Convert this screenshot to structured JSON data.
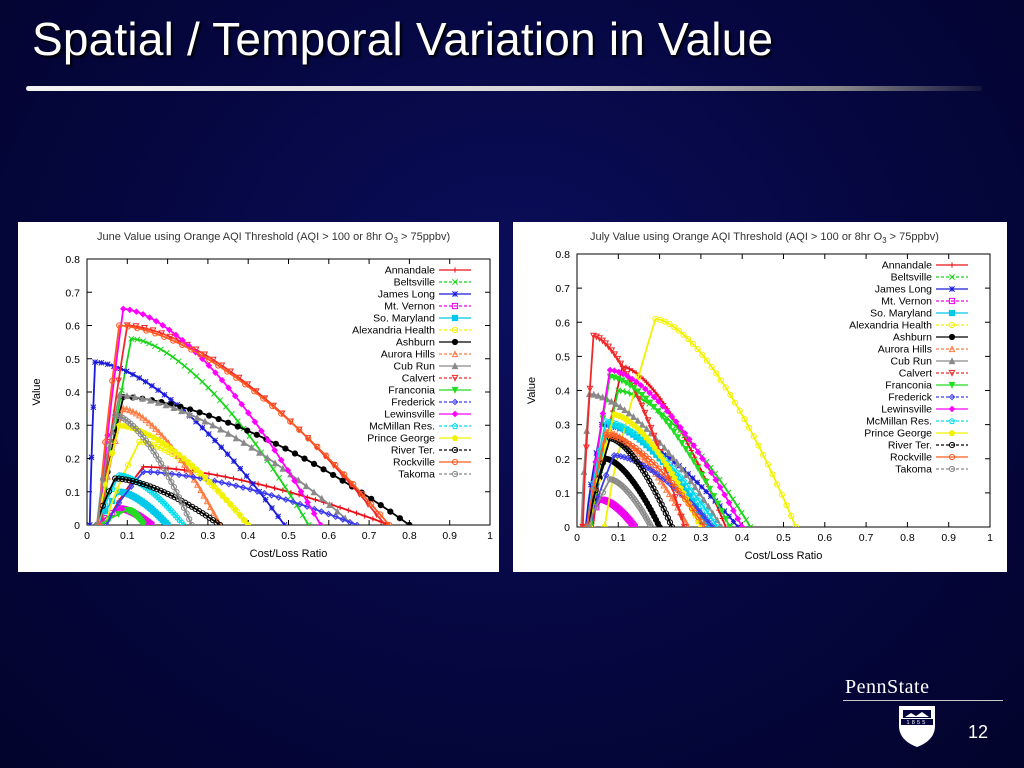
{
  "slide": {
    "title": "Spatial / Temporal Variation in Value",
    "number": "12",
    "logo": {
      "text": "PennState",
      "year": "1855"
    }
  },
  "colors": {
    "background": "#05063d",
    "title": "#ffffff"
  },
  "chart_data": [
    {
      "id": "june",
      "type": "line",
      "title_main": "June Value using Orange AQI Threshold (AQI > 100 or 8hr O",
      "title_sub": "3",
      "title_end": " > 75ppbv)",
      "xlabel": "Cost/Loss Ratio",
      "ylabel": "Value",
      "xlim": [
        0,
        1
      ],
      "ylim": [
        0,
        0.8
      ],
      "xticks": [
        "0",
        "0.1",
        "0.2",
        "0.3",
        "0.4",
        "0.5",
        "0.6",
        "0.7",
        "0.8",
        "0.9",
        "1"
      ],
      "yticks": [
        "0",
        "0.1",
        "0.2",
        "0.3",
        "0.4",
        "0.5",
        "0.6",
        "0.7",
        "0.8"
      ],
      "legend_position": "top-right",
      "series": [
        {
          "name": "Annandale",
          "color": "#e8101a",
          "marker": "plus",
          "peak": [
            0.14,
            0.175
          ],
          "end": 0.75
        },
        {
          "name": "Beltsville",
          "color": "#18d418",
          "marker": "x",
          "peak": [
            0.11,
            0.56
          ],
          "end": 0.55
        },
        {
          "name": "James Long",
          "color": "#1a1ad8",
          "marker": "star",
          "peak": [
            0.02,
            0.49
          ],
          "end": 0.49
        },
        {
          "name": "Mt. Vernon",
          "color": "#ee00ee",
          "marker": "square",
          "peak": [
            0.08,
            0.05
          ],
          "end": 0.16
        },
        {
          "name": "So. Maryland",
          "color": "#00c8e8",
          "marker": "filledsquare",
          "peak": [
            0.08,
            0.1
          ],
          "end": 0.2
        },
        {
          "name": "Alexandria Health",
          "color": "#f2f200",
          "marker": "circle",
          "peak": [
            0.13,
            0.25
          ],
          "end": 0.4
        },
        {
          "name": "Ashburn",
          "color": "#000000",
          "marker": "filledcircle",
          "peak": [
            0.09,
            0.385
          ],
          "end": 0.8
        },
        {
          "name": "Aurora Hills",
          "color": "#ff7a40",
          "marker": "triangle",
          "peak": [
            0.09,
            0.35
          ],
          "end": 0.33
        },
        {
          "name": "Cub Run",
          "color": "#8a8a8a",
          "marker": "filledtriangle",
          "peak": [
            0.08,
            0.39
          ],
          "end": 0.66
        },
        {
          "name": "Calvert",
          "color": "#f02828",
          "marker": "tridown",
          "peak": [
            0.1,
            0.6
          ],
          "end": 0.74
        },
        {
          "name": "Franconia",
          "color": "#22dd22",
          "marker": "filledtridown",
          "peak": [
            0.1,
            0.045
          ],
          "end": 0.14
        },
        {
          "name": "Frederick",
          "color": "#3a3aee",
          "marker": "diamond",
          "peak": [
            0.14,
            0.16
          ],
          "end": 0.67
        },
        {
          "name": "Lewinsville",
          "color": "#ff00ff",
          "marker": "filleddiamond",
          "peak": [
            0.09,
            0.65
          ],
          "end": 0.58
        },
        {
          "name": "McMillan Res.",
          "color": "#00ddee",
          "marker": "pentagon",
          "peak": [
            0.08,
            0.15
          ],
          "end": 0.24
        },
        {
          "name": "Prince George",
          "color": "#f2f200",
          "marker": "filledpentagon",
          "peak": [
            0.08,
            0.3
          ],
          "end": 0.4
        },
        {
          "name": "River Ter.",
          "color": "#000000",
          "marker": "circle",
          "peak": [
            0.07,
            0.14
          ],
          "end": 0.33
        },
        {
          "name": "Rockville",
          "color": "#ff5a22",
          "marker": "circle",
          "peak": [
            0.08,
            0.6
          ],
          "end": 0.75
        },
        {
          "name": "Takoma",
          "color": "#888888",
          "marker": "circle",
          "peak": [
            0.07,
            0.33
          ],
          "end": 0.26
        }
      ]
    },
    {
      "id": "july",
      "type": "line",
      "title_main": "July Value using Orange AQI Threshold (AQI > 100 or 8hr O",
      "title_sub": "3",
      "title_end": " > 75ppbv)",
      "xlabel": "Cost/Loss Ratio",
      "ylabel": "Value",
      "xlim": [
        0,
        1
      ],
      "ylim": [
        0,
        0.8
      ],
      "xticks": [
        "0",
        "0.1",
        "0.2",
        "0.3",
        "0.4",
        "0.5",
        "0.6",
        "0.7",
        "0.8",
        "0.9",
        "1"
      ],
      "yticks": [
        "0",
        "0.1",
        "0.2",
        "0.3",
        "0.4",
        "0.5",
        "0.6",
        "0.7",
        "0.8"
      ],
      "legend_position": "top-right",
      "series": [
        {
          "name": "Annandale",
          "color": "#e8101a",
          "marker": "plus",
          "peak": [
            0.11,
            0.47
          ],
          "end": 0.36
        },
        {
          "name": "Beltsville",
          "color": "#18d418",
          "marker": "x",
          "peak": [
            0.1,
            0.4
          ],
          "end": 0.42
        },
        {
          "name": "James Long",
          "color": "#1a1ad8",
          "marker": "star",
          "peak": [
            0.06,
            0.3
          ],
          "end": 0.39
        },
        {
          "name": "Mt. Vernon",
          "color": "#ee00ee",
          "marker": "square",
          "peak": [
            0.06,
            0.08
          ],
          "end": 0.14
        },
        {
          "name": "So. Maryland",
          "color": "#00c8e8",
          "marker": "filledsquare",
          "peak": [
            0.08,
            0.3
          ],
          "end": 0.32
        },
        {
          "name": "Alexandria Health",
          "color": "#f2f200",
          "marker": "circle",
          "peak": [
            0.19,
            0.61
          ],
          "end": 0.53
        },
        {
          "name": "Ashburn",
          "color": "#000000",
          "marker": "filledcircle",
          "peak": [
            0.07,
            0.2
          ],
          "end": 0.2
        },
        {
          "name": "Aurora Hills",
          "color": "#ff7a40",
          "marker": "triangle",
          "peak": [
            0.07,
            0.28
          ],
          "end": 0.27
        },
        {
          "name": "Cub Run",
          "color": "#8a8a8a",
          "marker": "filledtriangle",
          "peak": [
            0.03,
            0.39
          ],
          "end": 0.35
        },
        {
          "name": "Calvert",
          "color": "#f02828",
          "marker": "tridown",
          "peak": [
            0.04,
            0.56
          ],
          "end": 0.26
        },
        {
          "name": "Franconia",
          "color": "#22dd22",
          "marker": "filledtridown",
          "peak": [
            0.08,
            0.44
          ],
          "end": 0.37
        },
        {
          "name": "Frederick",
          "color": "#3a3aee",
          "marker": "diamond",
          "peak": [
            0.09,
            0.21
          ],
          "end": 0.33
        },
        {
          "name": "Lewinsville",
          "color": "#ff00ff",
          "marker": "filleddiamond",
          "peak": [
            0.08,
            0.46
          ],
          "end": 0.4
        },
        {
          "name": "McMillan Res.",
          "color": "#00ddee",
          "marker": "pentagon",
          "peak": [
            0.07,
            0.31
          ],
          "end": 0.34
        },
        {
          "name": "Prince George",
          "color": "#f2f200",
          "marker": "filledpentagon",
          "peak": [
            0.09,
            0.33
          ],
          "end": 0.3
        },
        {
          "name": "River Ter.",
          "color": "#000000",
          "marker": "circle",
          "peak": [
            0.08,
            0.26
          ],
          "end": 0.23
        },
        {
          "name": "Rockville",
          "color": "#ff5a22",
          "marker": "circle",
          "peak": [
            0.07,
            0.27
          ],
          "end": 0.31
        },
        {
          "name": "Takoma",
          "color": "#888888",
          "marker": "circle",
          "peak": [
            0.08,
            0.14
          ],
          "end": 0.18
        }
      ]
    }
  ]
}
